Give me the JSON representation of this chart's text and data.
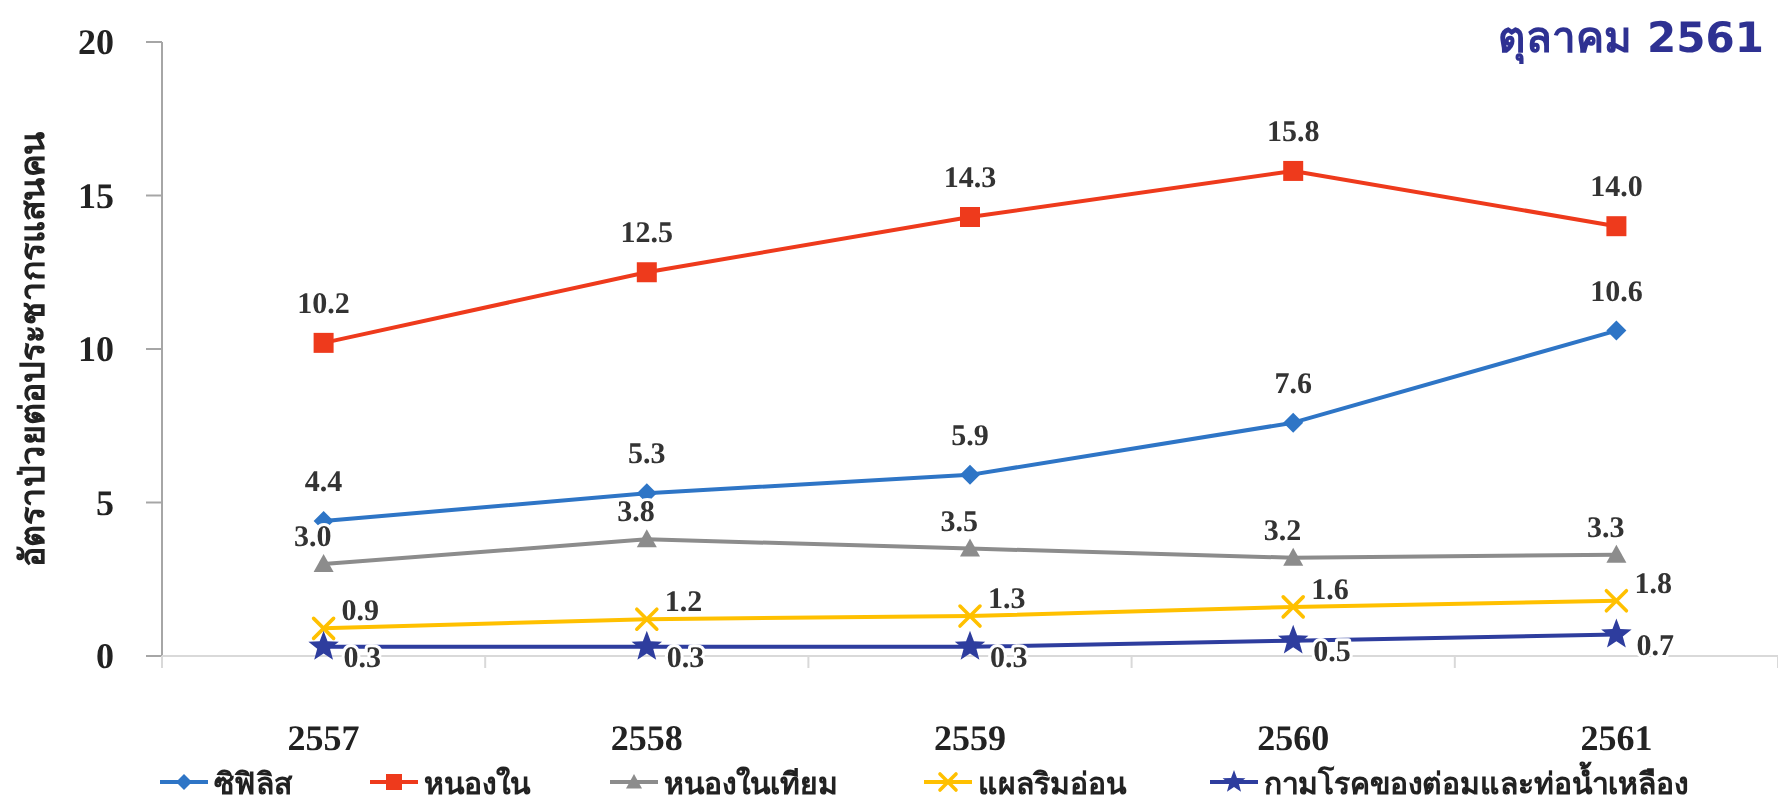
{
  "chart_data": {
    "type": "line",
    "title": "ตุลาคม 2561",
    "ylabel": "อัตราป่วยต่อประชากรแสนคน",
    "categories": [
      "2557",
      "2558",
      "2559",
      "2560",
      "2561"
    ],
    "series": [
      {
        "name": "ซิฟิลิส",
        "color": "#2e75c6",
        "marker": "diamond",
        "values": [
          4.4,
          5.3,
          5.9,
          7.6,
          10.6
        ],
        "value_labels": [
          "4.4",
          "5.3",
          "5.9",
          "7.6",
          "10.6"
        ]
      },
      {
        "name": "หนองใน",
        "color": "#ee3a1c",
        "marker": "square",
        "values": [
          10.2,
          12.5,
          14.3,
          15.8,
          14.0
        ],
        "value_labels": [
          "10.2",
          "12.5",
          "14.3",
          "15.8",
          "14.0"
        ]
      },
      {
        "name": "หนองในเทียม",
        "color": "#8c8c8c",
        "marker": "triangle",
        "values": [
          3.0,
          3.8,
          3.5,
          3.2,
          3.3
        ],
        "value_labels": [
          "3.0",
          "3.8",
          "3.5",
          "3.2",
          "3.3"
        ]
      },
      {
        "name": "แผลริมอ่อน",
        "color": "#ffc000",
        "marker": "cross",
        "values": [
          0.9,
          1.2,
          1.3,
          1.6,
          1.8
        ],
        "value_labels": [
          "0.9",
          "1.2",
          "1.3",
          "1.6",
          "1.8"
        ]
      },
      {
        "name": "กามโรคของต่อมและท่อน้ำเหลือง",
        "color": "#2e3d9e",
        "marker": "star",
        "values": [
          0.3,
          0.3,
          0.3,
          0.5,
          0.7
        ],
        "value_labels": [
          "0.3",
          "0.3",
          "0.3",
          "0.5",
          "0.7"
        ]
      }
    ],
    "ylim": [
      0,
      20
    ],
    "yticks": [
      0,
      5,
      10,
      15,
      20
    ],
    "grid": false,
    "legend": "bottom",
    "line_style": "solid"
  }
}
